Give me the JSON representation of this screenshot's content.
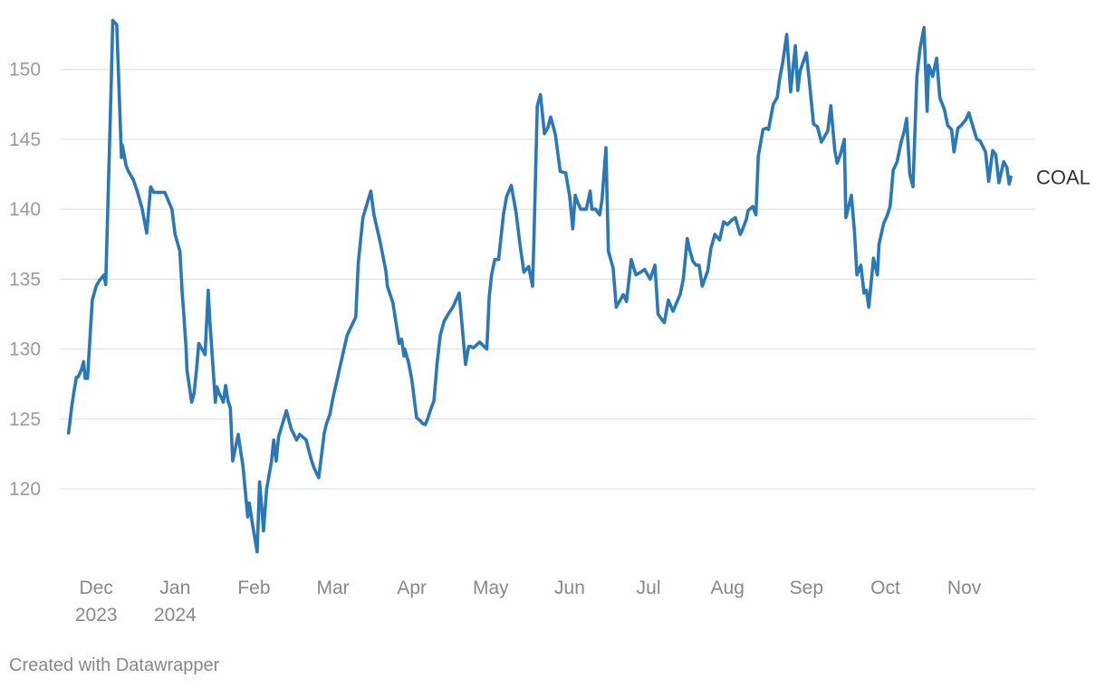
{
  "chart_data": {
    "type": "line",
    "title": "",
    "xlabel": "",
    "ylabel": "",
    "ylim": [
      114.5,
      153.8
    ],
    "yticks": [
      120,
      125,
      130,
      135,
      140,
      145,
      150
    ],
    "grid": true,
    "x_range": [
      -0.45,
      11.9
    ],
    "x_ticks": [
      {
        "pos": 0,
        "line1": "Dec",
        "line2": "2023"
      },
      {
        "pos": 1,
        "line1": "Jan",
        "line2": "2024"
      },
      {
        "pos": 2,
        "line1": "Feb",
        "line2": ""
      },
      {
        "pos": 3,
        "line1": "Mar",
        "line2": ""
      },
      {
        "pos": 4,
        "line1": "Apr",
        "line2": ""
      },
      {
        "pos": 5,
        "line1": "May",
        "line2": ""
      },
      {
        "pos": 6,
        "line1": "Jun",
        "line2": ""
      },
      {
        "pos": 7,
        "line1": "Jul",
        "line2": ""
      },
      {
        "pos": 8,
        "line1": "Aug",
        "line2": ""
      },
      {
        "pos": 9,
        "line1": "Sep",
        "line2": ""
      },
      {
        "pos": 10,
        "line1": "Oct",
        "line2": ""
      },
      {
        "pos": 11,
        "line1": "Nov",
        "line2": ""
      }
    ],
    "series": [
      {
        "name": "COAL",
        "color": "#2a78b5",
        "x": [
          -0.35,
          -0.31,
          -0.28,
          -0.25,
          -0.23,
          -0.19,
          -0.16,
          -0.14,
          -0.11,
          -0.05,
          0.0,
          0.04,
          0.1,
          0.12,
          0.19,
          0.21,
          0.26,
          0.32,
          0.33,
          0.38,
          0.41,
          0.47,
          0.52,
          0.58,
          0.64,
          0.69,
          0.73,
          0.8,
          0.87,
          0.96,
          1.0,
          1.06,
          1.09,
          1.11,
          1.14,
          1.15,
          1.21,
          1.24,
          1.27,
          1.3,
          1.32,
          1.34,
          1.38,
          1.42,
          1.44,
          1.51,
          1.53,
          1.56,
          1.59,
          1.61,
          1.64,
          1.67,
          1.7,
          1.73,
          1.76,
          1.8,
          1.82,
          1.86,
          1.92,
          1.94,
          1.98,
          2.04,
          2.07,
          2.1,
          2.12,
          2.16,
          2.22,
          2.25,
          2.28,
          2.31,
          2.41,
          2.47,
          2.54,
          2.58,
          2.66,
          2.72,
          2.76,
          2.82,
          2.89,
          2.92,
          2.96,
          3.0,
          3.1,
          3.18,
          3.29,
          3.32,
          3.35,
          3.38,
          3.48,
          3.52,
          3.6,
          3.67,
          3.69,
          3.76,
          3.84,
          3.87,
          3.9,
          3.91,
          3.96,
          4.0,
          4.06,
          4.12,
          4.13,
          4.17,
          4.2,
          4.24,
          4.28,
          4.32,
          4.36,
          4.41,
          4.43,
          4.46,
          4.52,
          4.6,
          4.68,
          4.72,
          4.74,
          4.78,
          4.86,
          4.95,
          4.98,
          5.01,
          5.05,
          5.1,
          5.16,
          5.2,
          5.26,
          5.32,
          5.37,
          5.42,
          5.48,
          5.53,
          5.55,
          5.59,
          5.63,
          5.68,
          5.72,
          5.76,
          5.82,
          5.88,
          5.95,
          6.0,
          6.04,
          6.07,
          6.1,
          6.14,
          6.21,
          6.26,
          6.28,
          6.33,
          6.38,
          6.41,
          6.46,
          6.49,
          6.55,
          6.59,
          6.64,
          6.68,
          6.72,
          6.78,
          6.84,
          6.9,
          6.95,
          7.02,
          7.08,
          7.12,
          7.17,
          7.2,
          7.25,
          7.31,
          7.36,
          7.4,
          7.44,
          7.49,
          7.52,
          7.56,
          7.6,
          7.64,
          7.68,
          7.75,
          7.79,
          7.84,
          7.9,
          7.95,
          8.0,
          8.05,
          8.1,
          8.16,
          8.18,
          8.24,
          8.26,
          8.32,
          8.36,
          8.39,
          8.45,
          8.49,
          8.52,
          8.58,
          8.63,
          8.66,
          8.7,
          8.75,
          8.8,
          8.86,
          8.89,
          8.92,
          9.0,
          9.04,
          9.09,
          9.14,
          9.19,
          9.23,
          9.27,
          9.31,
          9.36,
          9.39,
          9.43,
          9.48,
          9.5,
          9.57,
          9.61,
          9.64,
          9.69,
          9.73,
          9.76,
          9.79,
          9.85,
          9.9,
          9.92,
          9.98,
          10.02,
          10.06,
          10.1,
          10.15,
          10.2,
          10.24,
          10.27,
          10.31,
          10.35,
          10.4,
          10.44,
          10.49,
          10.53,
          10.55,
          10.6,
          10.65,
          10.69,
          10.75,
          10.79,
          10.84,
          10.87,
          10.92,
          10.96,
          11.02,
          11.06,
          11.11,
          11.16,
          11.2,
          11.27,
          11.31,
          11.36,
          11.4,
          11.44,
          11.5,
          11.54,
          11.57,
          11.59
        ],
        "y": [
          124.0,
          125.9,
          127.0,
          128.0,
          128.0,
          128.5,
          129.1,
          127.9,
          127.9,
          133.5,
          134.5,
          134.9,
          135.3,
          134.6,
          149.0,
          153.5,
          153.2,
          143.7,
          144.6,
          143.1,
          142.7,
          142.1,
          141.3,
          140.1,
          138.3,
          141.6,
          141.2,
          141.2,
          141.2,
          140.0,
          138.2,
          137.0,
          134.0,
          132.5,
          130.0,
          128.5,
          126.2,
          126.8,
          128.5,
          130.4,
          130.2,
          130.0,
          129.6,
          134.2,
          132.0,
          126.2,
          127.3,
          126.8,
          126.5,
          126.2,
          127.4,
          126.3,
          125.8,
          122.0,
          122.8,
          123.9,
          123.1,
          121.6,
          118.0,
          119.0,
          117.5,
          115.5,
          120.5,
          118.5,
          117.0,
          120.0,
          121.9,
          123.5,
          122.0,
          123.7,
          125.6,
          124.3,
          123.5,
          123.9,
          123.5,
          122.2,
          121.5,
          120.8,
          124.0,
          124.7,
          125.3,
          126.5,
          129.0,
          131.0,
          132.3,
          136.1,
          137.8,
          139.4,
          141.3,
          139.6,
          137.6,
          135.6,
          134.5,
          133.3,
          130.4,
          130.7,
          129.5,
          130.0,
          129.0,
          127.8,
          125.1,
          124.8,
          124.7,
          124.6,
          125.0,
          125.7,
          126.3,
          129.0,
          131.0,
          132.0,
          132.2,
          132.5,
          133.0,
          134.0,
          128.9,
          130.2,
          130.2,
          130.1,
          130.5,
          130.0,
          133.7,
          135.3,
          136.4,
          136.4,
          139.6,
          140.9,
          141.7,
          139.8,
          137.5,
          135.5,
          135.9,
          134.5,
          138.6,
          147.4,
          148.2,
          145.4,
          145.8,
          146.6,
          145.3,
          142.7,
          142.6,
          140.9,
          138.6,
          141.0,
          140.5,
          140.0,
          140.0,
          141.3,
          140.0,
          140.0,
          139.6,
          140.7,
          144.4,
          137.0,
          135.8,
          133.0,
          133.5,
          133.9,
          133.4,
          136.4,
          135.3,
          135.5,
          135.7,
          135.0,
          136.0,
          132.5,
          132.1,
          131.9,
          133.5,
          132.7,
          133.4,
          133.9,
          135.0,
          137.9,
          137.1,
          136.3,
          136.0,
          136.0,
          134.5,
          135.6,
          137.2,
          138.2,
          137.8,
          139.1,
          138.9,
          139.2,
          139.4,
          138.2,
          138.4,
          139.3,
          139.9,
          140.2,
          139.6,
          143.8,
          145.7,
          145.8,
          145.7,
          147.5,
          148.0,
          149.3,
          150.5,
          152.5,
          148.4,
          151.7,
          148.5,
          149.9,
          151.2,
          149.0,
          146.1,
          145.9,
          144.8,
          145.2,
          145.6,
          147.4,
          144.2,
          143.3,
          143.9,
          145.0,
          139.4,
          141.0,
          138.3,
          135.3,
          136.0,
          134.0,
          134.2,
          133.0,
          136.5,
          135.3,
          137.5,
          139.0,
          139.5,
          140.2,
          142.8,
          143.4,
          144.8,
          145.6,
          146.5,
          142.5,
          141.6,
          149.5,
          151.5,
          153.0,
          147.0,
          150.3,
          149.5,
          150.8,
          148.0,
          147.1,
          146.0,
          145.7,
          144.1,
          145.8,
          146.0,
          146.4,
          146.9,
          145.9,
          145.0,
          144.9,
          144.1,
          142.0,
          144.2,
          143.9,
          141.9,
          143.4,
          143.0,
          141.8,
          142.3
        ]
      }
    ]
  },
  "footer": "Created with Datawrapper"
}
